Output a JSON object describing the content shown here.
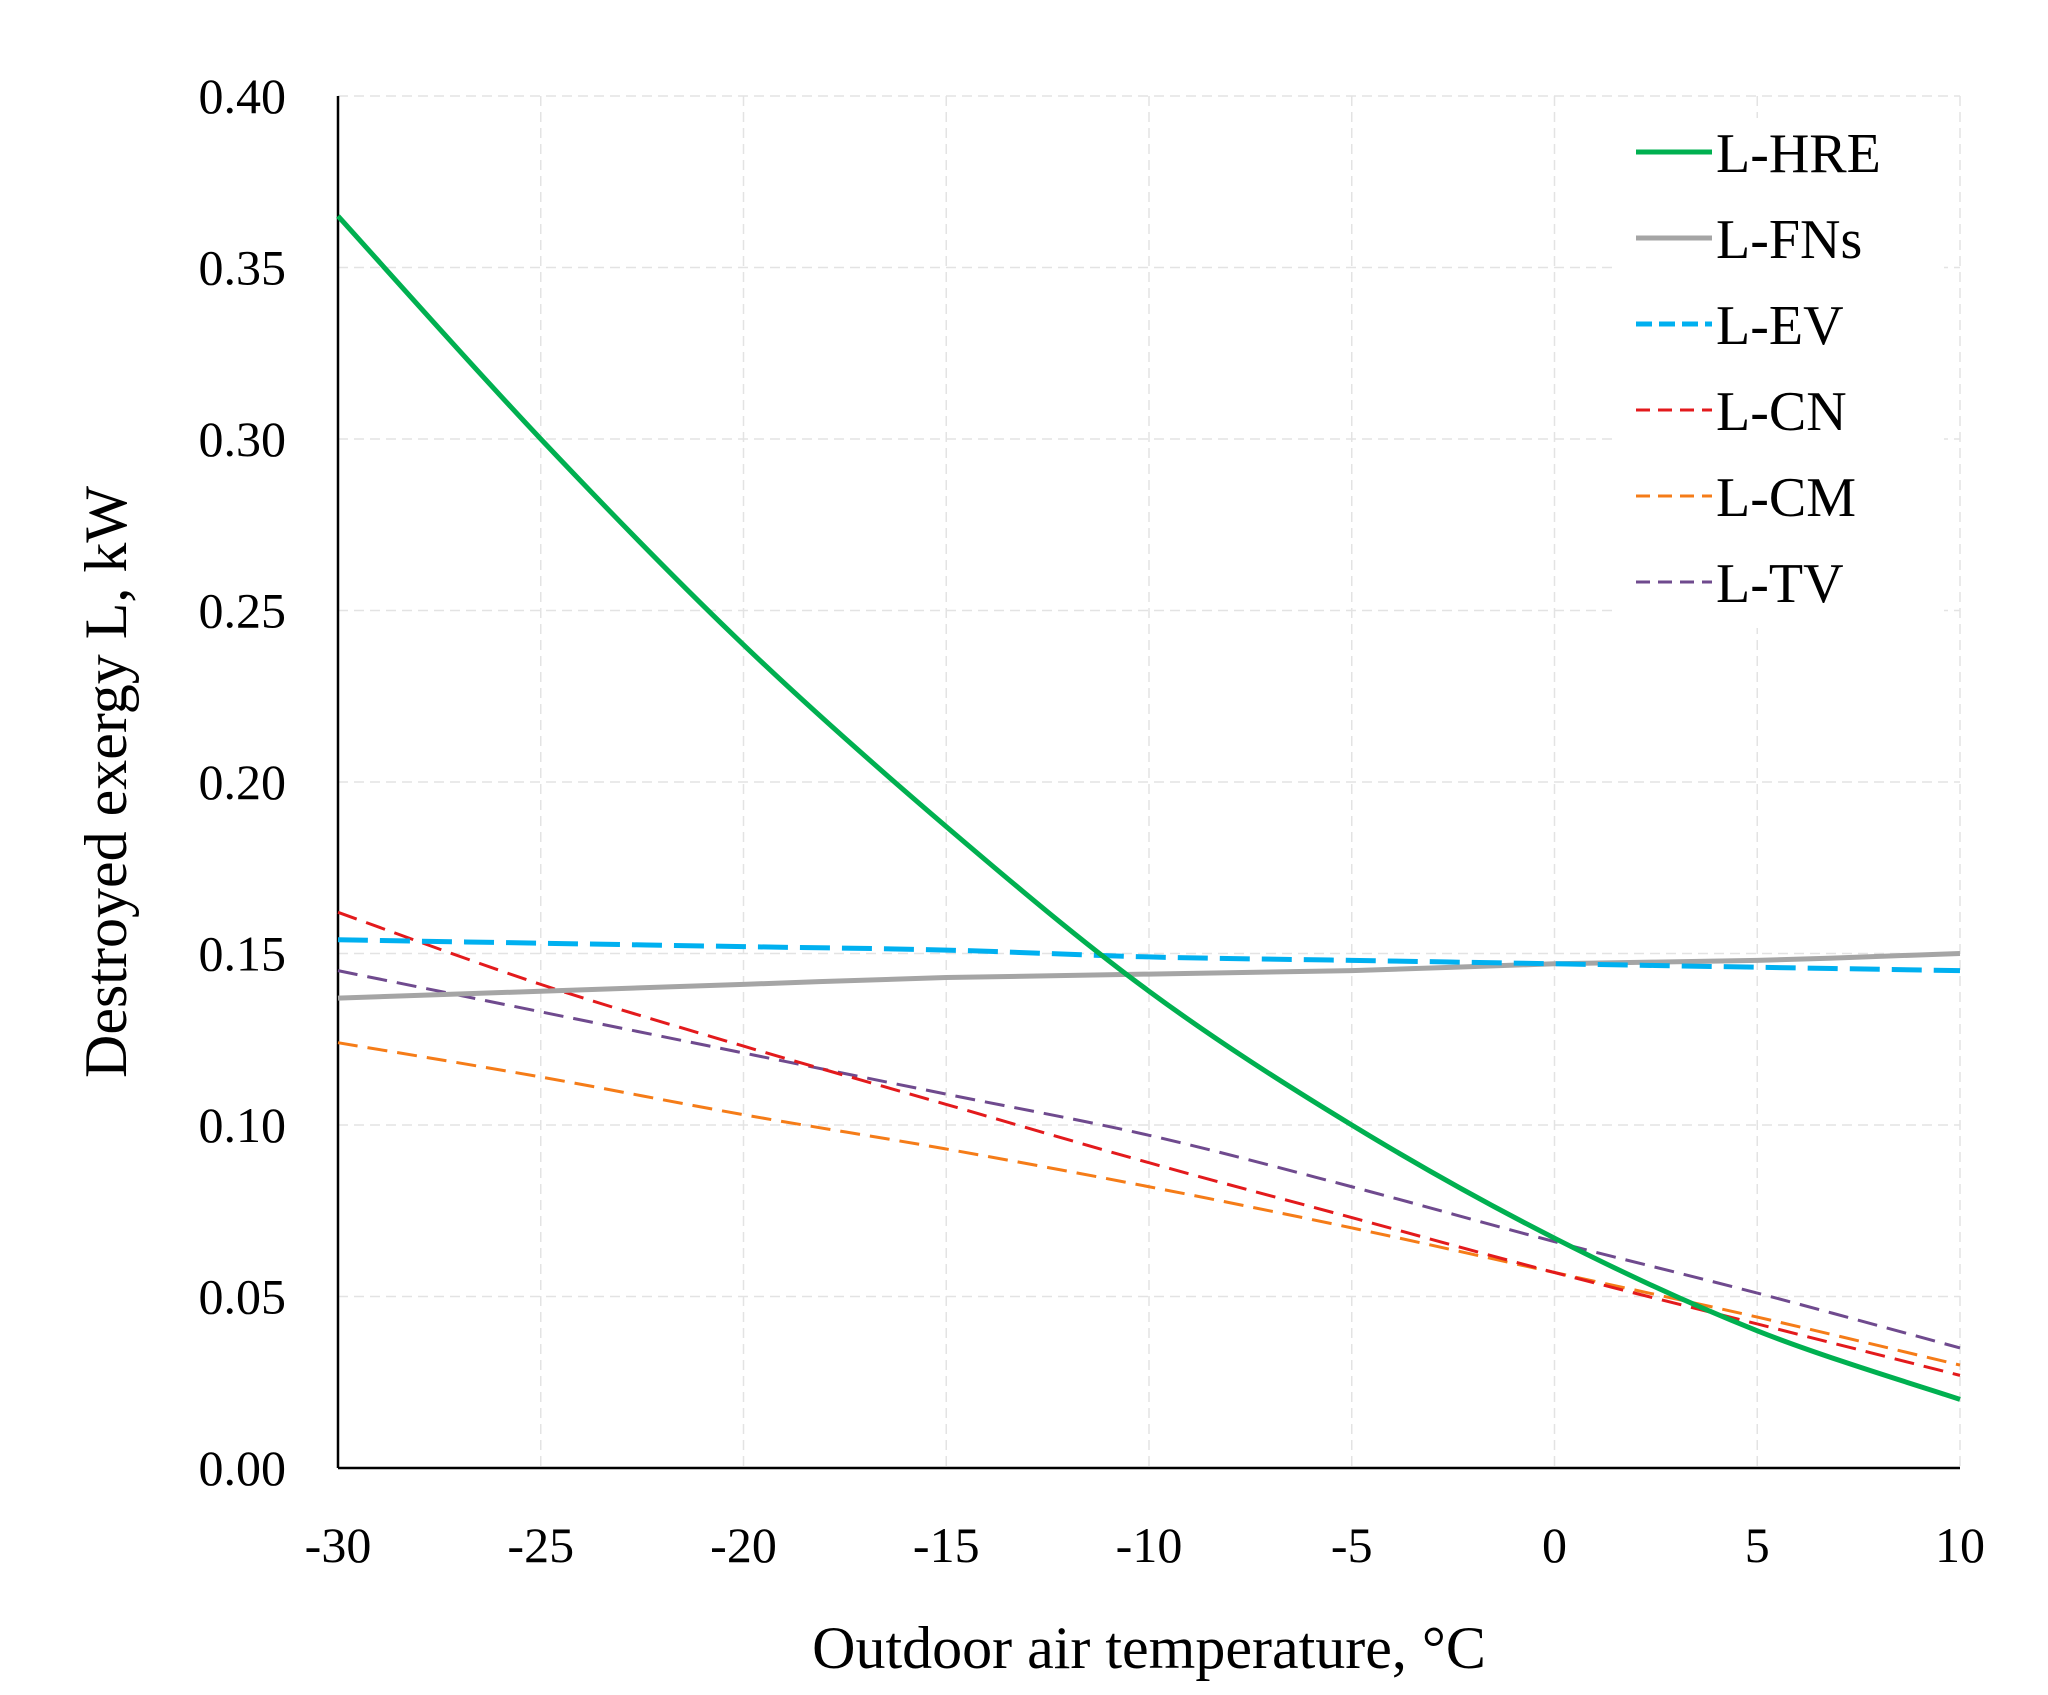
{
  "chart_data": {
    "type": "line",
    "title": "",
    "xlabel": "Outdoor air temperature, °C",
    "ylabel": "Destroyed exergy L, kW",
    "xlim": [
      -30,
      10
    ],
    "ylim": [
      0,
      0.4
    ],
    "x_ticks": [
      -30,
      -25,
      -20,
      -15,
      -10,
      -5,
      0,
      5,
      10
    ],
    "x_tick_labels": [
      "-30",
      "-25",
      "-20",
      "-15",
      "-10",
      "-5",
      "0",
      "5",
      "10"
    ],
    "y_ticks": [
      0,
      0.05,
      0.1,
      0.15,
      0.2,
      0.25,
      0.3,
      0.35,
      0.4
    ],
    "y_tick_labels": [
      "0.00",
      "0.05",
      "0.10",
      "0.15",
      "0.20",
      "0.25",
      "0.30",
      "0.35",
      "0.40"
    ],
    "grid": true,
    "legend_position": "top-right",
    "x": [
      -30,
      -25,
      -20,
      -15,
      -10,
      -5,
      0,
      5,
      10
    ],
    "series": [
      {
        "name": "L-HRE",
        "color": "#00B050",
        "dash": "solid",
        "width": 5,
        "values": [
          0.365,
          0.3,
          0.24,
          0.187,
          0.139,
          0.1,
          0.067,
          0.04,
          0.02
        ]
      },
      {
        "name": "L-FNs",
        "color": "#A5A5A5",
        "dash": "solid",
        "width": 5,
        "values": [
          0.137,
          0.139,
          0.141,
          0.143,
          0.144,
          0.145,
          0.147,
          0.148,
          0.15
        ]
      },
      {
        "name": "L-EV",
        "color": "#00B0F0",
        "dash": "long-dash",
        "width": 5,
        "values": [
          0.154,
          0.153,
          0.152,
          0.151,
          0.149,
          0.148,
          0.147,
          0.146,
          0.145
        ]
      },
      {
        "name": "L-CN",
        "color": "#E31A1C",
        "dash": "dash",
        "width": 3,
        "values": [
          0.162,
          0.141,
          0.123,
          0.106,
          0.089,
          0.073,
          0.057,
          0.042,
          0.027
        ]
      },
      {
        "name": "L-CM",
        "color": "#F57C18",
        "dash": "dash",
        "width": 3,
        "values": [
          0.124,
          0.114,
          0.103,
          0.093,
          0.082,
          0.07,
          0.057,
          0.044,
          0.03
        ]
      },
      {
        "name": "L-TV",
        "color": "#6F4A8E",
        "dash": "dash",
        "width": 3,
        "values": [
          0.145,
          0.133,
          0.121,
          0.109,
          0.097,
          0.082,
          0.066,
          0.051,
          0.035
        ]
      }
    ]
  }
}
